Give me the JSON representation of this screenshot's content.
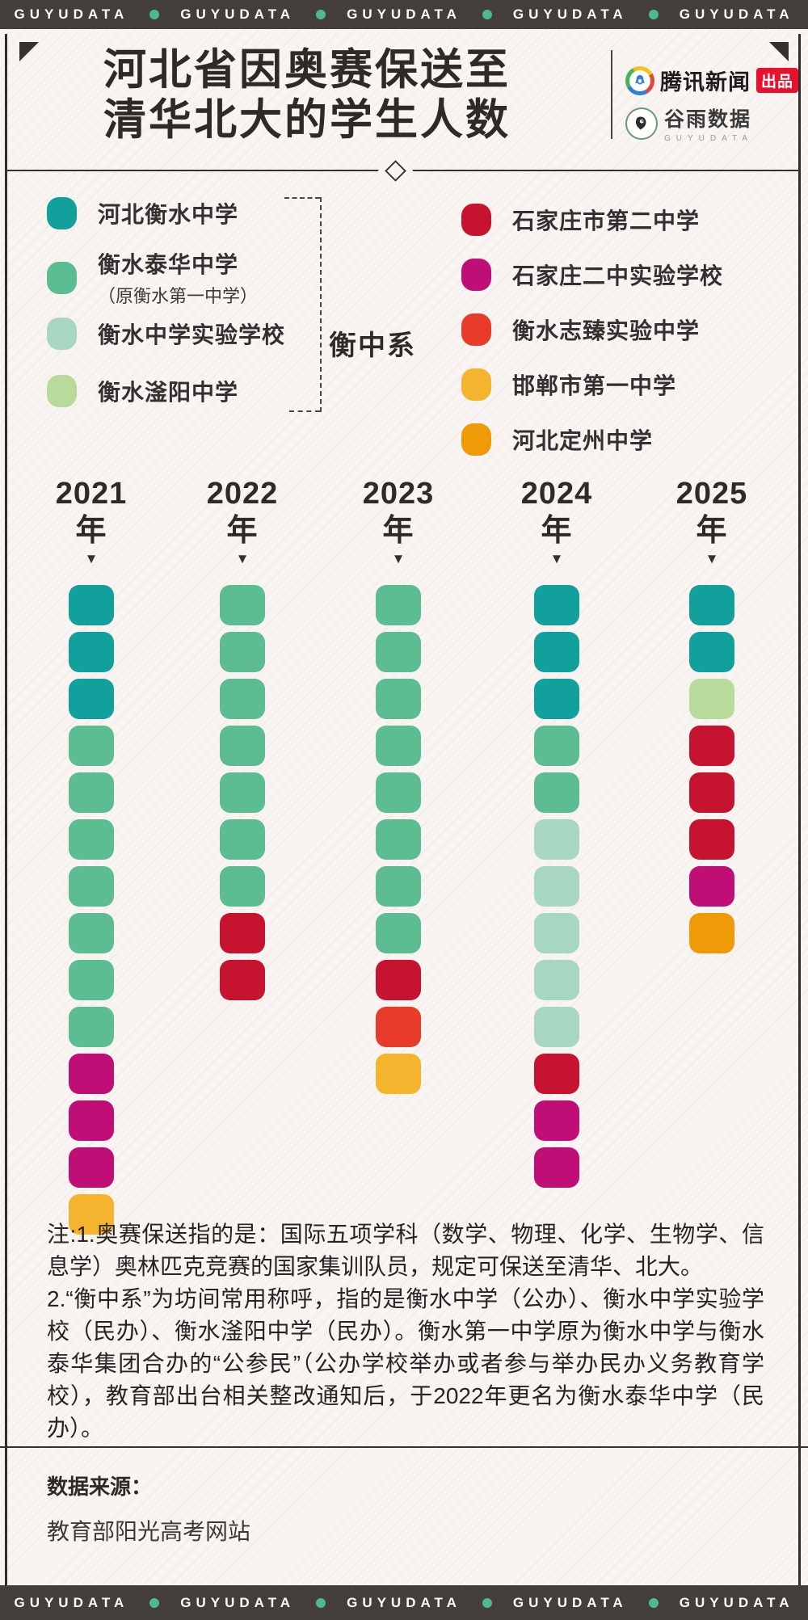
{
  "header": {
    "brand": "GUYUDATA",
    "repeat": 5,
    "dot_color": "#4CB98E",
    "bar_color": "#443E3B"
  },
  "footer": {
    "brand": "GUYUDATA",
    "repeat": 5
  },
  "title": {
    "line1": "河北省因奥赛保送至",
    "line2": "清华北大的学生人数"
  },
  "branding": {
    "tencent_name": "腾讯新闻",
    "tencent_badge": "出品",
    "guyu_name": "谷雨数据",
    "guyu_sub": "GUYUDATA"
  },
  "palette": {
    "hengshui": "#12A09D",
    "taihua": "#5CBD92",
    "shiyan": "#A7D7C2",
    "fuyang": "#B8DA9A",
    "sjzdier": "#C6132F",
    "sjzershiyan": "#BF0E75",
    "zhizhen": "#E83B2A",
    "handan": "#F5B42D",
    "dingzhou": "#EF9B08"
  },
  "legend": {
    "left_group_label": "衡中系",
    "left": [
      {
        "key": "hengshui",
        "label": "河北衡水中学"
      },
      {
        "key": "taihua",
        "label": "衡水泰华中学",
        "sublabel": "（原衡水第一中学）"
      },
      {
        "key": "shiyan",
        "label": "衡水中学实验学校"
      },
      {
        "key": "fuyang",
        "label": "衡水滏阳中学"
      }
    ],
    "right": [
      {
        "key": "sjzdier",
        "label": "石家庄市第二中学"
      },
      {
        "key": "sjzershiyan",
        "label": "石家庄二中实验学校"
      },
      {
        "key": "zhizhen",
        "label": "衡水志臻实验中学"
      },
      {
        "key": "handan",
        "label": "邯郸市第一中学"
      },
      {
        "key": "dingzhou",
        "label": "河北定州中学"
      }
    ]
  },
  "chart_data": {
    "type": "bar",
    "subtype": "stacked-unit-waffle-columns",
    "unit": "1 block = 1 student",
    "title": "河北省因奥赛保送至清华北大的学生人数",
    "categories": [
      "2021年",
      "2022年",
      "2023年",
      "2024年",
      "2025年"
    ],
    "totals": [
      14,
      9,
      11,
      13,
      8
    ],
    "marker": "▼",
    "series": [
      {
        "name": "河北衡水中学",
        "key": "hengshui",
        "values": [
          3,
          0,
          0,
          3,
          2
        ]
      },
      {
        "name": "衡水泰华中学（原衡水第一中学）",
        "key": "taihua",
        "values": [
          7,
          7,
          8,
          2,
          0
        ]
      },
      {
        "name": "衡水中学实验学校",
        "key": "shiyan",
        "values": [
          0,
          0,
          0,
          5,
          0
        ]
      },
      {
        "name": "衡水滏阳中学",
        "key": "fuyang",
        "values": [
          0,
          0,
          0,
          0,
          1
        ]
      },
      {
        "name": "石家庄市第二中学",
        "key": "sjzdier",
        "values": [
          0,
          2,
          1,
          1,
          3
        ]
      },
      {
        "name": "石家庄二中实验学校",
        "key": "sjzershiyan",
        "values": [
          3,
          0,
          0,
          2,
          1
        ]
      },
      {
        "name": "衡水志臻实验中学",
        "key": "zhizhen",
        "values": [
          0,
          0,
          1,
          0,
          0
        ]
      },
      {
        "name": "邯郸市第一中学",
        "key": "handan",
        "values": [
          1,
          0,
          1,
          0,
          0
        ]
      },
      {
        "name": "河北定州中学",
        "key": "dingzhou",
        "values": [
          0,
          0,
          0,
          0,
          1
        ]
      }
    ],
    "columns": [
      {
        "year": "2021年",
        "segments": [
          {
            "key": "hengshui",
            "count": 3
          },
          {
            "key": "taihua",
            "count": 7
          },
          {
            "key": "sjzershiyan",
            "count": 3
          },
          {
            "key": "handan",
            "count": 1
          }
        ]
      },
      {
        "year": "2022年",
        "segments": [
          {
            "key": "taihua",
            "count": 7
          },
          {
            "key": "sjzdier",
            "count": 2
          }
        ]
      },
      {
        "year": "2023年",
        "segments": [
          {
            "key": "taihua",
            "count": 8
          },
          {
            "key": "sjzdier",
            "count": 1
          },
          {
            "key": "zhizhen",
            "count": 1
          },
          {
            "key": "handan",
            "count": 1
          }
        ]
      },
      {
        "year": "2024年",
        "segments": [
          {
            "key": "hengshui",
            "count": 3
          },
          {
            "key": "taihua",
            "count": 2
          },
          {
            "key": "shiyan",
            "count": 5
          },
          {
            "key": "sjzdier",
            "count": 1
          },
          {
            "key": "sjzershiyan",
            "count": 2
          }
        ]
      },
      {
        "year": "2025年",
        "segments": [
          {
            "key": "hengshui",
            "count": 2
          },
          {
            "key": "fuyang",
            "count": 1
          },
          {
            "key": "sjzdier",
            "count": 3
          },
          {
            "key": "sjzershiyan",
            "count": 1
          },
          {
            "key": "dingzhou",
            "count": 1
          }
        ]
      }
    ]
  },
  "notes": {
    "p1": "注:1.奥赛保送指的是：国际五项学科（数学、物理、化学、生物学、信息学）奥林匹克竞赛的国家集训队员，规定可保送至清华、北大。",
    "p2": "2.“衡中系”为坊间常用称呼，指的是衡水中学（公办）、衡水中学实验学校（民办）、衡水滏阳中学（民办）。衡水第一中学原为衡水中学与衡水泰华集团合办的“公参民”（公办学校举办或者参与举办民办义务教育学校），教育部出台相关整改通知后，于2022年更名为衡水泰华中学（民办）。"
  },
  "source": {
    "label": "数据来源：",
    "value": "教育部阳光高考网站"
  }
}
